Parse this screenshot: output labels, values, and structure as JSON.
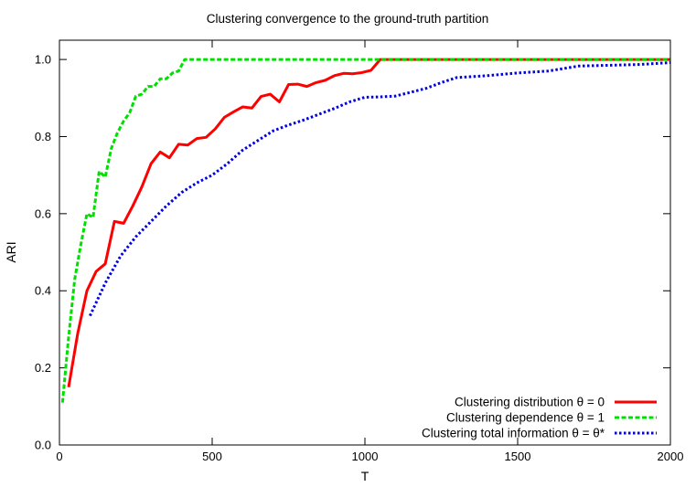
{
  "chart_data": {
    "type": "line",
    "title": "Clustering convergence to the ground-truth partition",
    "xlabel": "T",
    "ylabel": "ARI",
    "xlim": [
      0,
      2000
    ],
    "ylim": [
      0.0,
      1.05
    ],
    "xticks": [
      0,
      500,
      1000,
      1500,
      2000
    ],
    "xtick_labels": [
      "0",
      "500",
      "1000",
      "1500",
      "2000"
    ],
    "yticks": [
      0.0,
      0.2,
      0.4,
      0.6,
      0.8,
      1.0
    ],
    "ytick_labels": [
      "0.0",
      "0.2",
      "0.4",
      "0.6",
      "0.8",
      "1.0"
    ],
    "grid": false,
    "legend_position": "bottom-right",
    "series": [
      {
        "name": "Clustering distribution θ = 0",
        "color": "#ff0000",
        "dash": "solid",
        "x": [
          30,
          60,
          90,
          120,
          150,
          180,
          210,
          240,
          270,
          300,
          330,
          360,
          390,
          420,
          450,
          480,
          510,
          540,
          570,
          600,
          630,
          660,
          690,
          720,
          750,
          780,
          810,
          840,
          870,
          900,
          930,
          960,
          990,
          1020,
          1050,
          1080,
          1110,
          1140,
          1500,
          2000
        ],
        "y": [
          0.15,
          0.29,
          0.4,
          0.45,
          0.47,
          0.58,
          0.575,
          0.62,
          0.67,
          0.73,
          0.76,
          0.745,
          0.78,
          0.778,
          0.795,
          0.798,
          0.82,
          0.85,
          0.864,
          0.877,
          0.874,
          0.904,
          0.91,
          0.89,
          0.935,
          0.936,
          0.93,
          0.94,
          0.946,
          0.958,
          0.964,
          0.963,
          0.966,
          0.972,
          1.0,
          1.0,
          1.0,
          1.0,
          1.0,
          1.0
        ]
      },
      {
        "name": "Clustering dependence θ = 1",
        "color": "#00e000",
        "dash": "dashed",
        "x": [
          10,
          30,
          50,
          70,
          90,
          110,
          130,
          150,
          170,
          190,
          210,
          230,
          250,
          270,
          290,
          310,
          330,
          350,
          370,
          390,
          410,
          450,
          1000,
          1500,
          2000
        ],
        "y": [
          0.11,
          0.28,
          0.43,
          0.52,
          0.6,
          0.59,
          0.71,
          0.695,
          0.77,
          0.81,
          0.84,
          0.862,
          0.905,
          0.91,
          0.93,
          0.93,
          0.95,
          0.95,
          0.965,
          0.97,
          1.0,
          1.0,
          1.0,
          1.0,
          1.0
        ]
      },
      {
        "name": "Clustering total information θ = θ*",
        "color": "#0000e0",
        "dash": "dotted",
        "x": [
          100,
          150,
          200,
          250,
          300,
          350,
          400,
          450,
          500,
          550,
          600,
          650,
          700,
          750,
          800,
          850,
          900,
          950,
          1000,
          1050,
          1100,
          1150,
          1200,
          1250,
          1300,
          1400,
          1500,
          1600,
          1700,
          1800,
          1900,
          2000
        ],
        "y": [
          0.335,
          0.42,
          0.49,
          0.54,
          0.58,
          0.62,
          0.655,
          0.68,
          0.7,
          0.73,
          0.765,
          0.79,
          0.815,
          0.83,
          0.843,
          0.858,
          0.873,
          0.89,
          0.902,
          0.903,
          0.905,
          0.915,
          0.925,
          0.94,
          0.953,
          0.958,
          0.965,
          0.97,
          0.983,
          0.985,
          0.987,
          0.992
        ]
      }
    ]
  }
}
